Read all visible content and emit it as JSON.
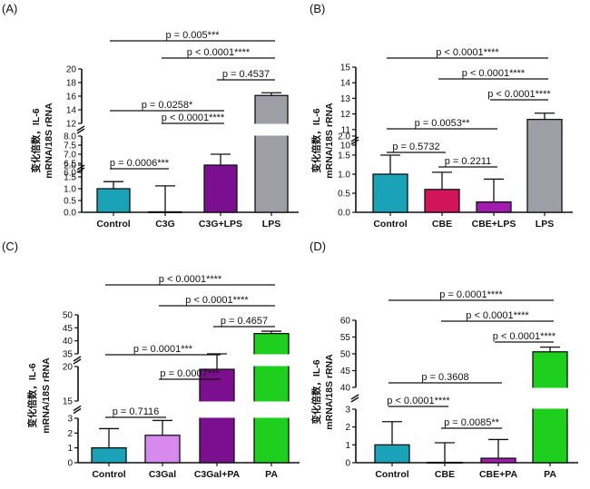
{
  "chart_data": [
    {
      "panel": "(A)",
      "type": "bar",
      "ylabel_1": "变化倍数，IL-6",
      "ylabel_2": "mRNA/18S rRNA",
      "categories": [
        "Control",
        "C3G",
        "C3G+LPS",
        "LPS"
      ],
      "values": [
        1.0,
        0.02,
        6.4,
        16.1
      ],
      "error": [
        0.3,
        1.1,
        0.6,
        0.4
      ],
      "colors": [
        "#1aa3b8",
        "#1aa3b8",
        "#7b0f8f",
        "#9e9ea6"
      ],
      "y_segments": [
        {
          "range": [
            0,
            2
          ],
          "ticks": [
            "0.0",
            "0.5",
            "1.0",
            "1.5",
            "2.0"
          ]
        },
        {
          "range": [
            6,
            8
          ],
          "ticks": [
            "6.0",
            "6.5",
            "7.0",
            "7.5",
            "8.0"
          ]
        },
        {
          "range": [
            12,
            20
          ],
          "ticks": [
            "12",
            "14",
            "16",
            "18",
            "20"
          ]
        }
      ],
      "comparisons": [
        {
          "text": "p = 0.0006***",
          "from": 0,
          "to": 1
        },
        {
          "text": "p < 0.0001****",
          "from": 1,
          "to": 2
        },
        {
          "text": "p = 0.0258*",
          "from": 0,
          "to": 2
        },
        {
          "text": "p = 0.4537",
          "from": 2,
          "to": 3
        },
        {
          "text": "p < 0.0001****",
          "from": 1,
          "to": 3
        },
        {
          "text": "p = 0.005***",
          "from": 0,
          "to": 3
        }
      ]
    },
    {
      "panel": "(B)",
      "type": "bar",
      "ylabel_1": "变化倍数，IL-6",
      "ylabel_2": "mRNA/18S rRNA",
      "categories": [
        "Control",
        "CBE",
        "CBE+LPS",
        "LPS"
      ],
      "values": [
        1.0,
        0.6,
        0.27,
        11.65
      ],
      "error": [
        0.5,
        0.45,
        0.6,
        0.4
      ],
      "colors": [
        "#1aa3b8",
        "#d2145a",
        "#a21caf",
        "#9e9ea6"
      ],
      "y_segments": [
        {
          "range": [
            0,
            2
          ],
          "ticks": [
            "0.0",
            "0.5",
            "1.0",
            "1.5",
            "2.0"
          ]
        },
        {
          "range": [
            10,
            15
          ],
          "ticks": [
            "10",
            "11",
            "12",
            "13",
            "14",
            "15"
          ]
        }
      ],
      "comparisons": [
        {
          "text": "p = 0.5732",
          "from": 0,
          "to": 1
        },
        {
          "text": "p = 0.2211",
          "from": 1,
          "to": 2
        },
        {
          "text": "p = 0.0053**",
          "from": 0,
          "to": 2
        },
        {
          "text": "p < 0.0001****",
          "from": 2,
          "to": 3
        },
        {
          "text": "p < 0.0001****",
          "from": 1,
          "to": 3
        },
        {
          "text": "p < 0.0001****",
          "from": 0,
          "to": 3
        }
      ]
    },
    {
      "panel": "(C)",
      "type": "bar",
      "ylabel_1": "变化倍数，IL-6",
      "ylabel_2": "mRNA/18S rRNA",
      "categories": [
        "Control",
        "C3Gal",
        "C3Gal+PA",
        "PA"
      ],
      "values": [
        1.0,
        1.85,
        19.6,
        42.8
      ],
      "error": [
        1.3,
        1.0,
        0.8,
        0.9
      ],
      "colors": [
        "#1aa3b8",
        "#d889ee",
        "#7b0f8f",
        "#1ecf1e"
      ],
      "y_segments": [
        {
          "range": [
            0,
            3
          ],
          "ticks": [
            "0",
            "1",
            "2",
            "3"
          ]
        },
        {
          "range": [
            15,
            20
          ],
          "ticks": [
            "15",
            "20"
          ]
        },
        {
          "range": [
            35,
            50
          ],
          "ticks": [
            "35",
            "40",
            "45",
            "50"
          ]
        }
      ],
      "comparisons": [
        {
          "text": "p = 0.7116",
          "from": 0,
          "to": 1
        },
        {
          "text": "p = 0.0007***",
          "from": 1,
          "to": 2
        },
        {
          "text": "p = 0.0001***",
          "from": 0,
          "to": 2
        },
        {
          "text": "p = 0.4657",
          "from": 2,
          "to": 3
        },
        {
          "text": "p < 0.0001****",
          "from": 1,
          "to": 3
        },
        {
          "text": "p < 0.0001****",
          "from": 0,
          "to": 3
        }
      ]
    },
    {
      "panel": "(D)",
      "type": "bar",
      "ylabel_1": "变化倍数，IL-6",
      "ylabel_2": "mRNA/18S rRNA",
      "categories": [
        "Control",
        "CBE",
        "CBE+PA",
        "PA"
      ],
      "values": [
        1.0,
        0.02,
        0.25,
        50.6
      ],
      "error": [
        1.3,
        1.1,
        1.05,
        1.4
      ],
      "colors": [
        "#1aa3b8",
        "#1aa3b8",
        "#a21caf",
        "#1ecf1e"
      ],
      "y_segments": [
        {
          "range": [
            0,
            3
          ],
          "ticks": [
            "0",
            "1",
            "2",
            "3"
          ]
        },
        {
          "range": [
            40,
            60
          ],
          "ticks": [
            "40",
            "45",
            "50",
            "55",
            "60"
          ]
        }
      ],
      "comparisons": [
        {
          "text": "p < 0.0001****",
          "from": 0,
          "to": 1
        },
        {
          "text": "p = 0.0085**",
          "from": 1,
          "to": 2
        },
        {
          "text": "p = 0.3608",
          "from": 0,
          "to": 2
        },
        {
          "text": "p < 0.0001****",
          "from": 2,
          "to": 3
        },
        {
          "text": "p < 0.0001****",
          "from": 1,
          "to": 3
        },
        {
          "text": "p = 0.0001****",
          "from": 0,
          "to": 3
        }
      ]
    }
  ]
}
